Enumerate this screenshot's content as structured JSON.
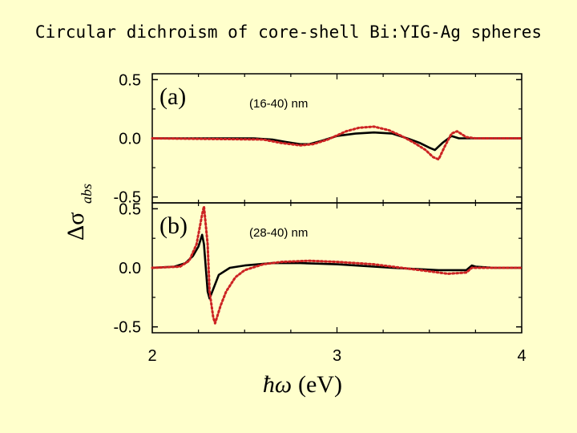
{
  "title": "Circular dichroism of core-shell Bi:YIG-Ag spheres",
  "chart_data": {
    "type": "line",
    "xlabel": {
      "symbol": "ħω",
      "unit": "(eV)"
    },
    "ylabel": {
      "symbol": "Δσ",
      "subscript": "abs"
    },
    "xlim": [
      2,
      4
    ],
    "x_ticks": [
      "2",
      "3",
      "4"
    ],
    "colors": {
      "solid": "#000000",
      "dotted": "#cc2222"
    },
    "panels": [
      {
        "label": "(a)",
        "note": "(16-40) nm",
        "ylim": [
          -0.55,
          0.55
        ],
        "y_ticks": [
          "0.5",
          "0.0",
          "-0.5"
        ],
        "series": [
          {
            "name": "solid",
            "points": [
              [
                2.0,
                0.0
              ],
              [
                2.55,
                0.0
              ],
              [
                2.65,
                -0.01
              ],
              [
                2.72,
                -0.03
              ],
              [
                2.8,
                -0.05
              ],
              [
                2.85,
                -0.05
              ],
              [
                2.92,
                -0.02
              ],
              [
                3.0,
                0.02
              ],
              [
                3.1,
                0.04
              ],
              [
                3.2,
                0.05
              ],
              [
                3.3,
                0.04
              ],
              [
                3.38,
                0.0
              ],
              [
                3.45,
                -0.04
              ],
              [
                3.5,
                -0.08
              ],
              [
                3.53,
                -0.1
              ],
              [
                3.57,
                -0.04
              ],
              [
                3.62,
                0.02
              ],
              [
                3.66,
                0.0
              ],
              [
                3.75,
                0.0
              ],
              [
                4.0,
                0.0
              ]
            ]
          },
          {
            "name": "dotted",
            "points": [
              [
                2.0,
                0.0
              ],
              [
                2.6,
                -0.01
              ],
              [
                2.7,
                -0.04
              ],
              [
                2.8,
                -0.06
              ],
              [
                2.87,
                -0.05
              ],
              [
                2.95,
                -0.01
              ],
              [
                3.05,
                0.06
              ],
              [
                3.12,
                0.09
              ],
              [
                3.2,
                0.1
              ],
              [
                3.28,
                0.07
              ],
              [
                3.35,
                0.02
              ],
              [
                3.42,
                -0.04
              ],
              [
                3.48,
                -0.1
              ],
              [
                3.52,
                -0.16
              ],
              [
                3.55,
                -0.18
              ],
              [
                3.58,
                -0.08
              ],
              [
                3.62,
                0.04
              ],
              [
                3.65,
                0.06
              ],
              [
                3.7,
                0.01
              ],
              [
                3.75,
                0.0
              ],
              [
                4.0,
                0.0
              ]
            ]
          }
        ]
      },
      {
        "label": "(b)",
        "note": "(28-40) nm",
        "ylim": [
          -0.55,
          0.55
        ],
        "y_ticks": [
          "0.5",
          "0.0",
          "-0.5"
        ],
        "series": [
          {
            "name": "solid",
            "points": [
              [
                2.0,
                0.0
              ],
              [
                2.12,
                0.01
              ],
              [
                2.18,
                0.04
              ],
              [
                2.22,
                0.1
              ],
              [
                2.25,
                0.18
              ],
              [
                2.27,
                0.28
              ],
              [
                2.28,
                0.2
              ],
              [
                2.29,
                0.0
              ],
              [
                2.3,
                -0.2
              ],
              [
                2.31,
                -0.26
              ],
              [
                2.33,
                -0.18
              ],
              [
                2.36,
                -0.06
              ],
              [
                2.42,
                0.0
              ],
              [
                2.5,
                0.02
              ],
              [
                2.65,
                0.04
              ],
              [
                2.8,
                0.04
              ],
              [
                3.0,
                0.03
              ],
              [
                3.3,
                0.0
              ],
              [
                3.55,
                -0.02
              ],
              [
                3.7,
                -0.02
              ],
              [
                3.73,
                0.02
              ],
              [
                3.75,
                0.01
              ],
              [
                3.85,
                0.0
              ],
              [
                4.0,
                0.0
              ]
            ]
          },
          {
            "name": "dotted",
            "points": [
              [
                2.0,
                0.0
              ],
              [
                2.15,
                0.01
              ],
              [
                2.2,
                0.06
              ],
              [
                2.24,
                0.2
              ],
              [
                2.27,
                0.45
              ],
              [
                2.28,
                0.52
              ],
              [
                2.3,
                0.2
              ],
              [
                2.31,
                -0.2
              ],
              [
                2.33,
                -0.42
              ],
              [
                2.34,
                -0.47
              ],
              [
                2.37,
                -0.32
              ],
              [
                2.4,
                -0.2
              ],
              [
                2.45,
                -0.08
              ],
              [
                2.5,
                -0.02
              ],
              [
                2.6,
                0.03
              ],
              [
                2.7,
                0.05
              ],
              [
                2.85,
                0.06
              ],
              [
                3.0,
                0.05
              ],
              [
                3.2,
                0.03
              ],
              [
                3.4,
                -0.01
              ],
              [
                3.5,
                -0.03
              ],
              [
                3.6,
                -0.05
              ],
              [
                3.7,
                -0.04
              ],
              [
                3.73,
                0.0
              ],
              [
                3.76,
                0.0
              ],
              [
                4.0,
                0.0
              ]
            ]
          }
        ]
      }
    ]
  }
}
